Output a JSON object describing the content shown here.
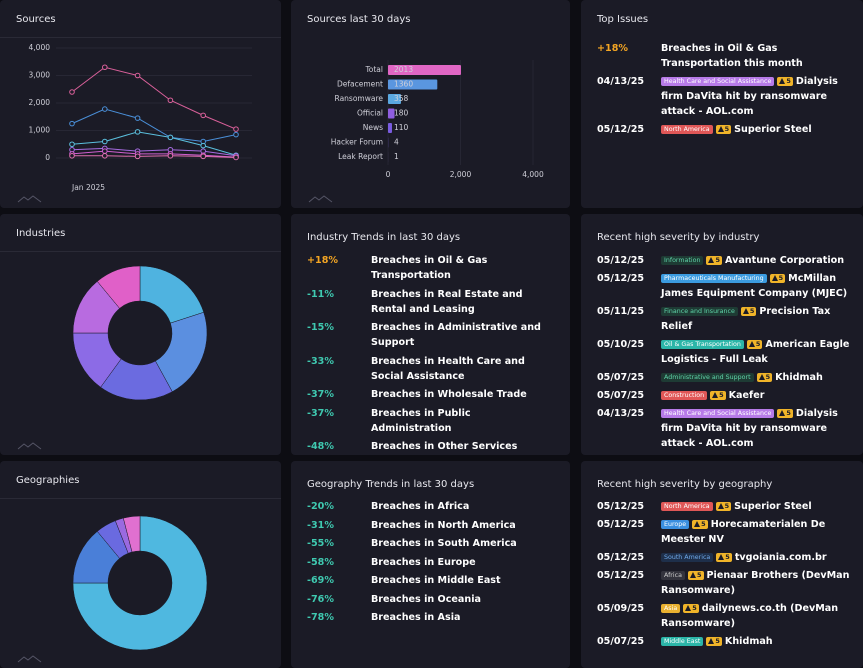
{
  "sources": {
    "title": "Sources",
    "chart_data": {
      "type": "line",
      "categories": [
        "Jan 2025",
        null,
        null,
        null,
        null,
        null
      ],
      "ylim": [
        0,
        4000
      ],
      "yticks": [
        0,
        {
          "value": 1000,
          "label": "1,000"
        },
        {
          "value": 2000,
          "label": "2,000"
        },
        {
          "value": 3000,
          "label": "3,000"
        },
        {
          "value": 4000,
          "label": "4,000"
        }
      ],
      "grid": true,
      "series": [
        {
          "color": "#d9609a",
          "values": [
            2400,
            3300,
            3000,
            2100,
            1550,
            1050
          ]
        },
        {
          "color": "#4a8fd8",
          "values": [
            1250,
            1780,
            1450,
            750,
            600,
            850
          ]
        },
        {
          "color": "#5bc0de",
          "values": [
            500,
            600,
            950,
            750,
            450,
            100
          ]
        },
        {
          "color": "#a66be0",
          "values": [
            300,
            350,
            250,
            300,
            250,
            80
          ]
        },
        {
          "color": "#d05fd0",
          "values": [
            150,
            250,
            150,
            150,
            100,
            30
          ]
        },
        {
          "color": "#e070b0",
          "values": [
            80,
            80,
            60,
            80,
            60,
            20
          ]
        }
      ]
    }
  },
  "sources_30": {
    "title": "Sources last 30 days",
    "chart_data": {
      "type": "hbar",
      "categories": [
        "Total",
        "Defacement",
        "Ransomware",
        "Official",
        "News",
        "Hacker Forum",
        "Leak Report"
      ],
      "values": [
        2013,
        1360,
        358,
        180,
        110,
        4,
        1
      ],
      "colors": [
        "#e066c4",
        "#5a96e0",
        "#5aa8e0",
        "#8f5ee0",
        "#7a5ce0",
        "#7a5ce0",
        "#7a5ce0"
      ],
      "xlim": [
        0,
        4000
      ],
      "xticks": [
        0,
        {
          "value": 2000,
          "label": "2,000"
        },
        {
          "value": 4000,
          "label": "4,000"
        }
      ],
      "grid": true
    }
  },
  "top_issues": {
    "title": "Top Issues",
    "items": [
      {
        "date": "+18%",
        "date_color": "#f5a623",
        "text": "Breaches in Oil & Gas Transportation this month"
      },
      {
        "date": "04/13/25",
        "tag": "Health Care and Social Assistance",
        "tag_color": "#b77be8",
        "tag_text": "#ffffff",
        "severity": "5",
        "text": "Dialysis firm DaVita hit by ransomware attack - AOL.com"
      },
      {
        "date": "05/12/25",
        "tag": "North America",
        "tag_color": "#e05757",
        "tag_text": "#ffffff",
        "severity": "5",
        "text": "Superior Steel"
      }
    ]
  },
  "industries": {
    "title": "Industries",
    "chart_data": {
      "type": "donut",
      "values": [
        20,
        22,
        18,
        15,
        14,
        11
      ],
      "colors": [
        "#4fb3e0",
        "#5b8fe0",
        "#6b6be0",
        "#8c6be6",
        "#b86be0",
        "#e060c8"
      ]
    }
  },
  "industry_trends": {
    "title": "Industry Trends in last 30 days",
    "rows": [
      {
        "change": "+18%",
        "color": "#f5a623",
        "text": "Breaches in Oil & Gas Transportation"
      },
      {
        "change": "-11%",
        "color": "#3fc9b0",
        "text": "Breaches in Real Estate and Rental and Leasing"
      },
      {
        "change": "-15%",
        "color": "#3fc9b0",
        "text": "Breaches in Administrative and Support"
      },
      {
        "change": "-33%",
        "color": "#3fc9b0",
        "text": "Breaches in Health Care and Social Assistance"
      },
      {
        "change": "-37%",
        "color": "#3fc9b0",
        "text": "Breaches in Wholesale Trade"
      },
      {
        "change": "-37%",
        "color": "#3fc9b0",
        "text": "Breaches in Public Administration"
      },
      {
        "change": "-48%",
        "color": "#3fc9b0",
        "text": "Breaches in Other Services"
      }
    ]
  },
  "recent_industry": {
    "title": "Recent high severity by industry",
    "items": [
      {
        "date": "05/12/25",
        "tag": "Information",
        "tag_color": "#1e3b34",
        "tag_text": "#5fd3a8",
        "severity": "5",
        "text": "Avantune Corporation"
      },
      {
        "date": "05/12/25",
        "tag": "Pharmaceuticals Manufacturing",
        "tag_color": "#3b9be0",
        "tag_text": "#ffffff",
        "severity": "5",
        "text": "McMillan James Equipment Company (MJEC)"
      },
      {
        "date": "05/11/25",
        "tag": "Finance and Insurance",
        "tag_color": "#1e3b34",
        "tag_text": "#5fd3a8",
        "severity": "5",
        "text": "Precision Tax Relief"
      },
      {
        "date": "05/10/25",
        "tag": "Oil & Gas Transportation",
        "tag_color": "#2bb5a8",
        "tag_text": "#ffffff",
        "severity": "5",
        "text": "American Eagle Logistics - Full Leak"
      },
      {
        "date": "05/07/25",
        "tag": "Administrative and Support",
        "tag_color": "#1e3b34",
        "tag_text": "#5fd3a8",
        "severity": "5",
        "text": "Khidmah"
      },
      {
        "date": "05/07/25",
        "tag": "Construction",
        "tag_color": "#e05757",
        "tag_text": "#ffffff",
        "severity": "5",
        "text": "Kaefer"
      },
      {
        "date": "04/13/25",
        "tag": "Health Care and Social Assistance",
        "tag_color": "#b77be8",
        "tag_text": "#ffffff",
        "severity": "5",
        "text": "Dialysis firm DaVita hit by ransomware attack - AOL.com"
      }
    ]
  },
  "geographies": {
    "title": "Geographies",
    "chart_data": {
      "type": "donut",
      "values": [
        75,
        14,
        5,
        2,
        4
      ],
      "colors": [
        "#4fb8e0",
        "#4a7fd8",
        "#6a6ae0",
        "#9a6ae0",
        "#e070d0"
      ]
    }
  },
  "geography_trends": {
    "title": "Geography Trends in last 30 days",
    "rows": [
      {
        "change": "-20%",
        "color": "#3fc9b0",
        "text": "Breaches in Africa"
      },
      {
        "change": "-31%",
        "color": "#3fc9b0",
        "text": "Breaches in North America"
      },
      {
        "change": "-55%",
        "color": "#3fc9b0",
        "text": "Breaches in South America"
      },
      {
        "change": "-58%",
        "color": "#3fc9b0",
        "text": "Breaches in Europe"
      },
      {
        "change": "-69%",
        "color": "#3fc9b0",
        "text": "Breaches in Middle East"
      },
      {
        "change": "-76%",
        "color": "#3fc9b0",
        "text": "Breaches in Oceania"
      },
      {
        "change": "-78%",
        "color": "#3fc9b0",
        "text": "Breaches in Asia"
      }
    ]
  },
  "recent_geo": {
    "title": "Recent high severity by geography",
    "items": [
      {
        "date": "05/12/25",
        "tag": "North America",
        "tag_color": "#e05757",
        "tag_text": "#ffffff",
        "severity": "5",
        "text": "Superior Steel"
      },
      {
        "date": "05/12/25",
        "tag": "Europe",
        "tag_color": "#3b8fe0",
        "tag_text": "#ffffff",
        "severity": "5",
        "text": "Horecamaterialen De Meester NV"
      },
      {
        "date": "05/12/25",
        "tag": "South America",
        "tag_color": "#1e2f4a",
        "tag_text": "#6fa8e8",
        "severity": "5",
        "text": "tvgoiania.com.br"
      },
      {
        "date": "05/12/25",
        "tag": "Africa",
        "tag_color": "#33333d",
        "tag_text": "#cccccc",
        "severity": "5",
        "text": "Pienaar Brothers (DevMan Ransomware)"
      },
      {
        "date": "05/09/25",
        "tag": "Asia",
        "tag_color": "#e8b030",
        "tag_text": "#ffffff",
        "severity": "5",
        "text": "dailynews.co.th (DevMan Ransomware)"
      },
      {
        "date": "05/07/25",
        "tag": "Middle East",
        "tag_color": "#2bb5a8",
        "tag_text": "#ffffff",
        "severity": "5",
        "text": "Khidmah"
      }
    ]
  }
}
